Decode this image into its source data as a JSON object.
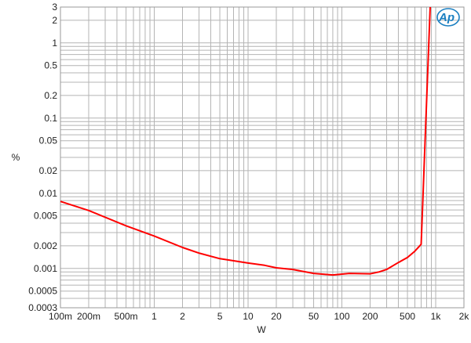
{
  "chart_data": {
    "type": "line",
    "title": "",
    "xlabel": "W",
    "ylabel": "%",
    "xscale": "log",
    "yscale": "log",
    "xlim": [
      0.1,
      2000
    ],
    "ylim": [
      0.0003,
      3
    ],
    "grid": true,
    "x_tick_values": [
      0.1,
      0.2,
      0.5,
      1,
      2,
      5,
      10,
      20,
      50,
      100,
      200,
      500,
      1000,
      2000
    ],
    "x_tick_labels": [
      "100m",
      "200m",
      "500m",
      "1",
      "2",
      "5",
      "10",
      "20",
      "50",
      "100",
      "200",
      "500",
      "1k",
      "2k"
    ],
    "y_tick_values": [
      3,
      2,
      1,
      0.5,
      0.2,
      0.1,
      0.05,
      0.02,
      0.01,
      0.005,
      0.002,
      0.001,
      0.0005,
      0.0003
    ],
    "y_tick_labels": [
      "3",
      "2",
      "1",
      "0.5",
      "0.2",
      "0.1",
      "0.05",
      "0.02",
      "0.01",
      "0.005",
      "0.002",
      "0.001",
      "0.0005",
      "0.0003"
    ],
    "series": [
      {
        "color": "#ff0000",
        "x": [
          0.1,
          0.2,
          0.5,
          1,
          2,
          3,
          5,
          10,
          15,
          20,
          30,
          50,
          80,
          120,
          200,
          250,
          300,
          400,
          500,
          600,
          700,
          873
        ],
        "y": [
          0.0078,
          0.0059,
          0.0037,
          0.0027,
          0.0019,
          0.0016,
          0.00135,
          0.00118,
          0.0011,
          0.00102,
          0.00097,
          0.00086,
          0.00082,
          0.00086,
          0.00085,
          0.0009,
          0.00097,
          0.0012,
          0.0014,
          0.0017,
          0.0021,
          3
        ]
      }
    ]
  },
  "logo": {
    "text": "AP",
    "color": "#1a7fc1"
  }
}
